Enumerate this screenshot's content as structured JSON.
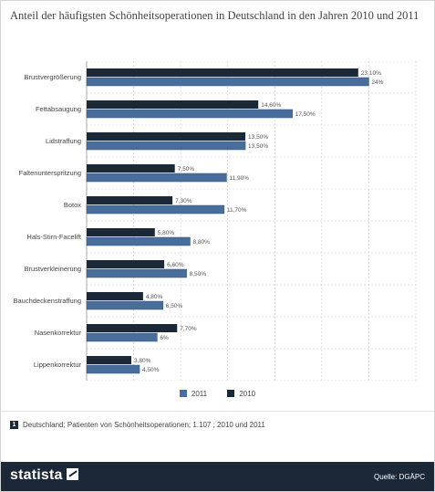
{
  "title": "Anteil der häufigsten Schönheitsoperationen in Deutschland in den Jahren 2010 und 2011",
  "legend": {
    "series_2011": "2011",
    "series_2010": "2010"
  },
  "note": {
    "icon": "1",
    "text": "Deutschland; Patienten von Schönheitsoperationen; 1.107 ; 2010 und 2011"
  },
  "footer": {
    "logo": "statista",
    "source": "Quelle: DGÄPC"
  },
  "colors": {
    "s2010": "#1b2838",
    "s2011": "#4a6e9b",
    "footer_bg": "#1b2838",
    "grid": "#cccccc"
  },
  "chart_data": {
    "type": "bar",
    "orientation": "horizontal",
    "categories": [
      "Brustvergrößerung",
      "Fettabsaugung",
      "Lidstraffung",
      "Faltenunterspritzung",
      "Botox",
      "Hals-Stirn-Facelift",
      "Brustverkleinerung",
      "Bauchdeckenstraffung",
      "Nasenkorrektur",
      "Lippenkorrektur"
    ],
    "series": [
      {
        "name": "2010",
        "values": [
          23.1,
          14.6,
          13.5,
          7.5,
          7.3,
          5.8,
          6.6,
          4.8,
          7.7,
          3.8
        ],
        "labels": [
          "23,10%",
          "14,60%",
          "13,50%",
          "7,50%",
          "7,30%",
          "5,80%",
          "6,60%",
          "4,80%",
          "7,70%",
          "3,80%"
        ]
      },
      {
        "name": "2011",
        "values": [
          24,
          17.5,
          13.5,
          11.9,
          11.7,
          8.8,
          8.5,
          6.5,
          6,
          4.5
        ],
        "labels": [
          "24%",
          "17,50%",
          "13,50%",
          "11,90%",
          "11,70%",
          "8,80%",
          "8,50%",
          "6,50%",
          "6%",
          "4,50%"
        ]
      }
    ],
    "xlim": [
      0,
      28
    ],
    "grid": true,
    "legend_position": "bottom"
  }
}
